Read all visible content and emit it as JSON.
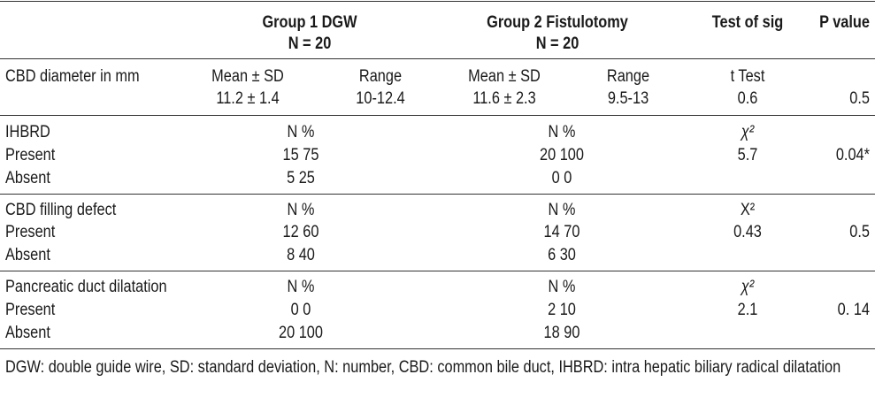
{
  "header": {
    "group1_title": "Group 1 DGW",
    "group1_n": "N = 20",
    "group2_title": "Group 2 Fistulotomy",
    "group2_n": "N = 20",
    "test_col": "Test of sig",
    "p_col": "P value"
  },
  "cbd": {
    "label": "CBD diameter in mm",
    "g1_mean_header": "Mean ± SD",
    "g1_range_header": "Range",
    "g2_mean_header": "Mean ± SD",
    "g2_range_header": "Range",
    "test_header": "t Test",
    "g1_mean": "11.2 ± 1.4",
    "g1_range": "10-12.4",
    "g2_mean": "11.6 ± 2.3",
    "g2_range": "9.5-13",
    "test_value": "0.6",
    "p_value": "0.5"
  },
  "sections": [
    {
      "label": "IHBRD",
      "g1_header": "N %",
      "g2_header": "N %",
      "test_header": "χ²",
      "present_label": "Present",
      "g1_present": "15 75",
      "g2_present": "20 100",
      "test_value": "5.7",
      "p_value": "0.04*",
      "absent_label": "Absent",
      "g1_absent": "5 25",
      "g2_absent": "0 0"
    },
    {
      "label": "CBD filling defect",
      "g1_header": "N %",
      "g2_header": "N %",
      "test_header": "X²",
      "present_label": "Present",
      "g1_present": "12 60",
      "g2_present": "14 70",
      "test_value": "0.43",
      "p_value": "0.5",
      "absent_label": "Absent",
      "g1_absent": "8 40",
      "g2_absent": "6 30"
    },
    {
      "label": "Pancreatic duct dilatation",
      "g1_header": "N %",
      "g2_header": "N %",
      "test_header": "χ²",
      "present_label": "Present",
      "g1_present": "0 0",
      "g2_present": "2 10",
      "test_value": "2.1",
      "p_value": "0. 14",
      "absent_label": "Absent",
      "g1_absent": "20 100",
      "g2_absent": "18 90"
    }
  ],
  "footnote": "DGW: double guide wire, SD: standard deviation, N: number, CBD: common bile duct, IHBRD: intra hepatic biliary radical dilatation"
}
